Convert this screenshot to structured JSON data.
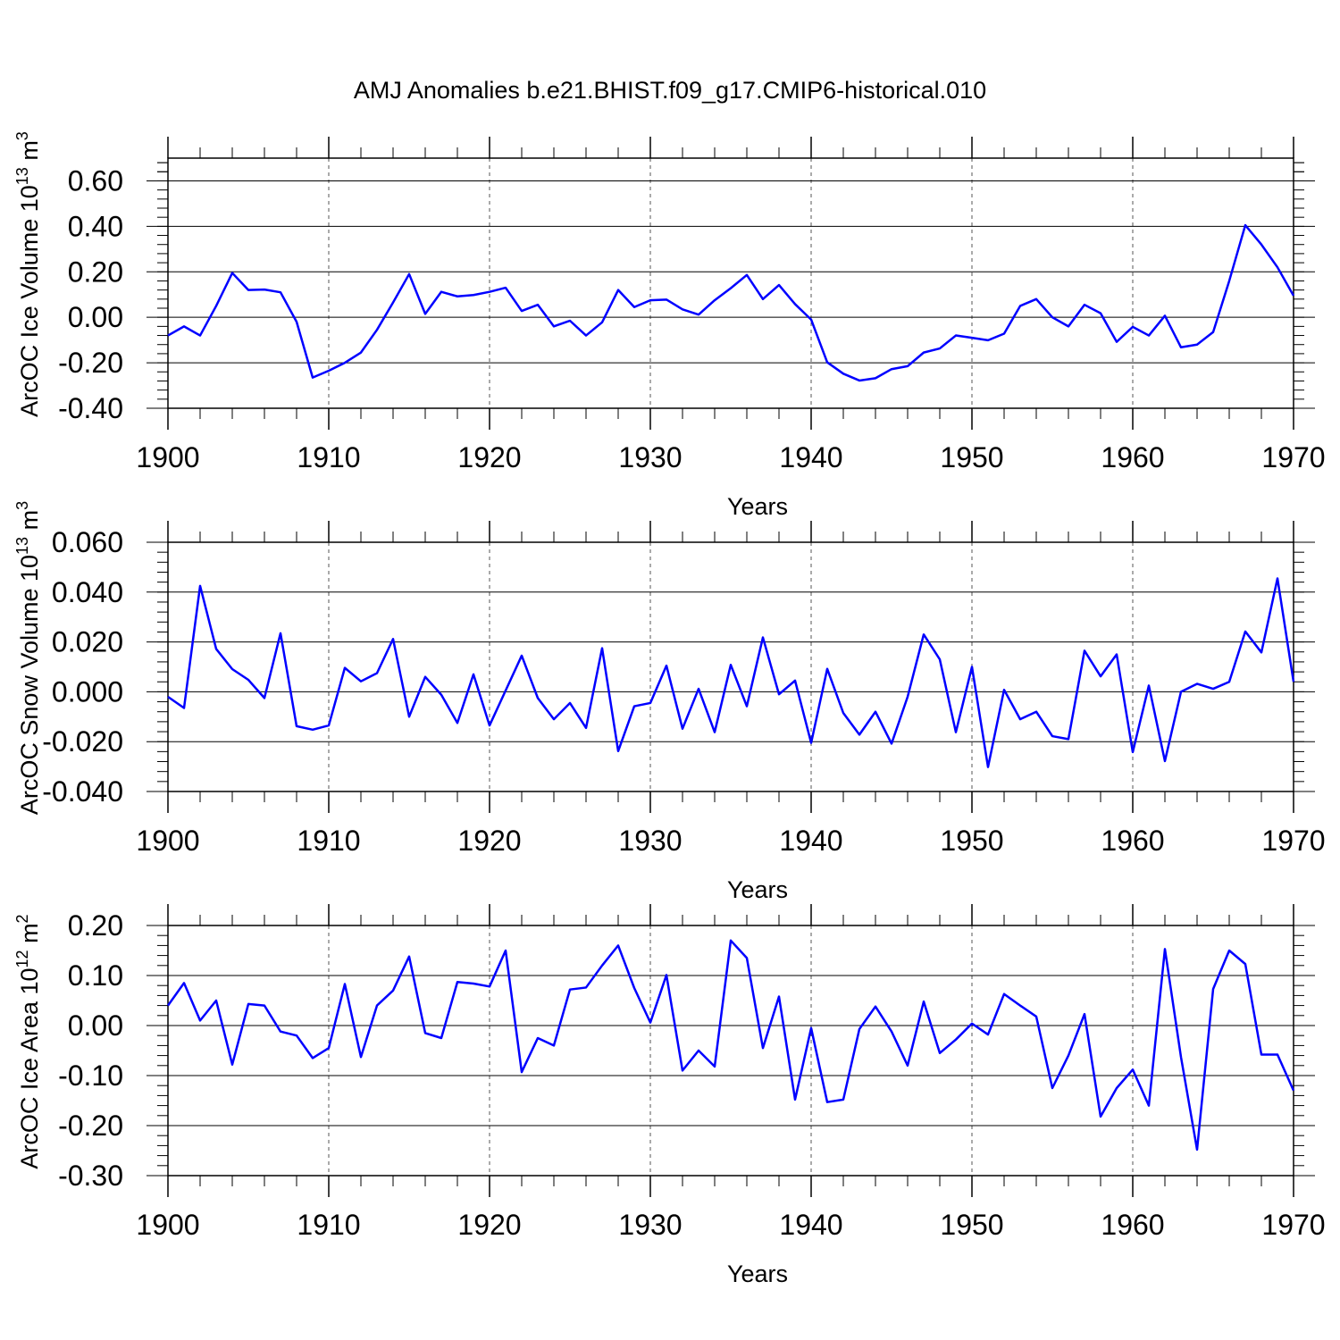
{
  "title": "AMJ Anomalies b.e21.BHIST.f09_g17.CMIP6-historical.010",
  "line_color": "#0000ff",
  "chart_data": [
    {
      "type": "line",
      "title": "AMJ Anomalies b.e21.BHIST.f09_g17.CMIP6-historical.010",
      "xlabel": "Years",
      "ylabel": "ArcOC Ice Volume 10",
      "ylabel_exp": "13",
      "ylabel_unit": "m",
      "ylabel_unit_exp": "3",
      "xlim": [
        1900,
        1970
      ],
      "ylim": [
        -0.4,
        0.7
      ],
      "yticks": [
        -0.4,
        -0.2,
        0.0,
        0.2,
        0.4,
        0.6
      ],
      "ytick_labels": [
        "-0.40",
        "-0.20",
        "0.00",
        "0.20",
        "0.40",
        "0.60"
      ],
      "xticks": [
        1900,
        1910,
        1920,
        1930,
        1940,
        1950,
        1960,
        1970
      ],
      "xtick_labels": [
        "1900",
        "1910",
        "1920",
        "1930",
        "1940",
        "1950",
        "1960",
        "1970"
      ],
      "x_start": 1900,
      "values": [
        -0.08,
        -0.04,
        -0.08,
        0.05,
        0.195,
        0.12,
        0.122,
        0.11,
        -0.02,
        -0.265,
        -0.235,
        -0.2,
        -0.155,
        -0.055,
        0.065,
        0.19,
        0.015,
        0.112,
        0.092,
        0.098,
        0.112,
        0.13,
        0.028,
        0.055,
        -0.04,
        -0.015,
        -0.08,
        -0.022,
        0.12,
        0.045,
        0.075,
        0.078,
        0.035,
        0.012,
        0.075,
        0.128,
        0.186,
        0.08,
        0.142,
        0.058,
        -0.01,
        -0.198,
        -0.248,
        -0.278,
        -0.268,
        -0.228,
        -0.215,
        -0.155,
        -0.137,
        -0.08,
        -0.09,
        -0.101,
        -0.072,
        0.05,
        0.08,
        0.0,
        -0.04,
        0.055,
        0.018,
        -0.108,
        -0.042,
        -0.08,
        0.007,
        -0.132,
        -0.12,
        -0.065,
        0.16,
        0.405,
        0.32,
        0.22,
        0.095
      ]
    },
    {
      "type": "line",
      "xlabel": "Years",
      "ylabel": "ArcOC Snow Volume 10",
      "ylabel_exp": "13",
      "ylabel_unit": "m",
      "ylabel_unit_exp": "3",
      "xlim": [
        1900,
        1970
      ],
      "ylim": [
        -0.04,
        0.06
      ],
      "yticks": [
        -0.04,
        -0.02,
        0.0,
        0.02,
        0.04,
        0.06
      ],
      "ytick_labels": [
        "-0.040",
        "-0.020",
        "0.000",
        "0.020",
        "0.040",
        "0.060"
      ],
      "xticks": [
        1900,
        1910,
        1920,
        1930,
        1940,
        1950,
        1960,
        1970
      ],
      "xtick_labels": [
        "1900",
        "1910",
        "1920",
        "1930",
        "1940",
        "1950",
        "1960",
        "1970"
      ],
      "x_start": 1900,
      "values": [
        -0.002,
        -0.0065,
        0.0425,
        0.0172,
        0.0091,
        0.0048,
        -0.0025,
        0.0235,
        -0.0138,
        -0.0152,
        -0.0135,
        0.0096,
        0.0042,
        0.0075,
        0.0212,
        -0.01,
        0.006,
        -0.0012,
        -0.0125,
        0.007,
        -0.0135,
        0.0005,
        0.0145,
        -0.0025,
        -0.011,
        -0.0045,
        -0.0145,
        0.0175,
        -0.0238,
        -0.0058,
        -0.0045,
        0.0105,
        -0.0148,
        0.0012,
        -0.0162,
        0.0108,
        -0.0058,
        0.0218,
        -0.001,
        0.0045,
        -0.0205,
        0.0092,
        -0.0085,
        -0.0172,
        -0.008,
        -0.0208,
        -0.002,
        0.023,
        0.013,
        -0.0162,
        0.01,
        -0.0302,
        0.0008,
        -0.011,
        -0.008,
        -0.0178,
        -0.019,
        0.0165,
        0.0062,
        0.015,
        -0.0242,
        0.0025,
        -0.0278,
        0.0,
        0.0032,
        0.0012,
        0.004,
        0.0242,
        0.0158,
        0.0455,
        0.004
      ]
    },
    {
      "type": "line",
      "xlabel": "Years",
      "ylabel": "ArcOC Ice Area 10",
      "ylabel_exp": "12",
      "ylabel_unit": "m",
      "ylabel_unit_exp": "2",
      "xlim": [
        1900,
        1970
      ],
      "ylim": [
        -0.3,
        0.2
      ],
      "yticks": [
        -0.3,
        -0.2,
        -0.1,
        0.0,
        0.1,
        0.2
      ],
      "ytick_labels": [
        "-0.30",
        "-0.20",
        "-0.10",
        "0.00",
        "0.10",
        "0.20"
      ],
      "xticks": [
        1900,
        1910,
        1920,
        1930,
        1940,
        1950,
        1960,
        1970
      ],
      "xtick_labels": [
        "1900",
        "1910",
        "1920",
        "1930",
        "1940",
        "1950",
        "1960",
        "1970"
      ],
      "x_start": 1900,
      "values": [
        0.04,
        0.085,
        0.01,
        0.05,
        -0.078,
        0.043,
        0.04,
        -0.012,
        -0.02,
        -0.065,
        -0.045,
        0.083,
        -0.063,
        0.04,
        0.07,
        0.138,
        -0.015,
        -0.025,
        0.087,
        0.084,
        0.078,
        0.15,
        -0.093,
        -0.025,
        -0.04,
        0.072,
        0.076,
        0.12,
        0.16,
        0.075,
        0.006,
        0.101,
        -0.09,
        -0.05,
        -0.082,
        0.17,
        0.135,
        -0.045,
        0.058,
        -0.148,
        -0.005,
        -0.153,
        -0.148,
        -0.007,
        0.038,
        -0.012,
        -0.08,
        0.048,
        -0.055,
        -0.028,
        0.004,
        -0.018,
        0.063,
        0.04,
        0.018,
        -0.125,
        -0.06,
        0.023,
        -0.182,
        -0.125,
        -0.088,
        -0.16,
        0.153,
        -0.063,
        -0.248,
        0.073,
        0.15,
        0.123,
        -0.058,
        -0.058,
        -0.13
      ]
    }
  ]
}
